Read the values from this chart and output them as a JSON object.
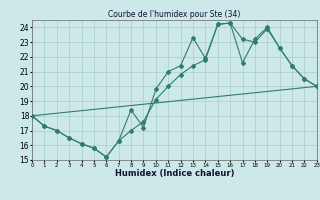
{
  "title": "Courbe de l'humidex pour Ste (34)",
  "xlabel": "Humidex (Indice chaleur)",
  "bg_color": "#cce8e8",
  "grid_color": "#aacccc",
  "line_color": "#2e7d6e",
  "xlim": [
    0,
    23
  ],
  "ylim": [
    15,
    24.5
  ],
  "xticks": [
    0,
    1,
    2,
    3,
    4,
    5,
    6,
    7,
    8,
    9,
    10,
    11,
    12,
    13,
    14,
    15,
    16,
    17,
    18,
    19,
    20,
    21,
    22,
    23
  ],
  "yticks": [
    15,
    16,
    17,
    18,
    19,
    20,
    21,
    22,
    23,
    24
  ],
  "line1_x": [
    0,
    1,
    2,
    3,
    4,
    5,
    6,
    7,
    8,
    9,
    10,
    11,
    12,
    13,
    14,
    15,
    16,
    17,
    18,
    19,
    20,
    21,
    22,
    23
  ],
  "line1_y": [
    18.0,
    17.3,
    17.0,
    16.5,
    16.1,
    15.8,
    15.2,
    16.3,
    17.0,
    17.6,
    19.1,
    20.0,
    20.8,
    21.4,
    21.8,
    24.2,
    24.3,
    21.6,
    23.2,
    24.0,
    22.6,
    21.4,
    20.5,
    20.0
  ],
  "line2_x": [
    0,
    1,
    2,
    3,
    4,
    5,
    6,
    7,
    8,
    9,
    10,
    11,
    12,
    13,
    14,
    15,
    16,
    17,
    18,
    19,
    20,
    21,
    22,
    23
  ],
  "line2_y": [
    18.0,
    17.3,
    17.0,
    16.5,
    16.1,
    15.8,
    15.2,
    16.3,
    18.4,
    17.2,
    19.8,
    21.0,
    21.4,
    23.3,
    21.9,
    24.2,
    24.3,
    23.2,
    23.0,
    23.9,
    22.6,
    21.4,
    20.5,
    20.0
  ],
  "line3_x": [
    0,
    23
  ],
  "line3_y": [
    18.0,
    20.0
  ]
}
